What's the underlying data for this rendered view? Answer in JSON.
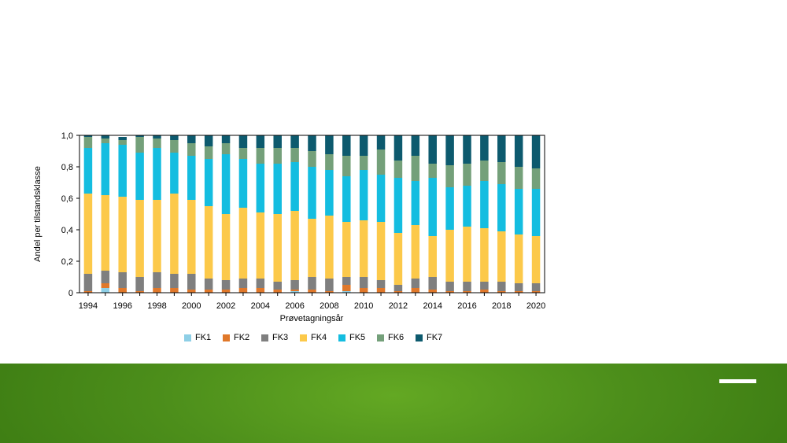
{
  "chart_data": {
    "type": "bar",
    "stacked": true,
    "xlabel": "Prøvetagningsår",
    "ylabel": "Andel per tilstandsklasse",
    "ylim": [
      0,
      1
    ],
    "yticks": [
      "0",
      "0,2",
      "0,4",
      "0,6",
      "0,8",
      "1,0"
    ],
    "yticks_values": [
      0,
      0.2,
      0.4,
      0.6,
      0.8,
      1.0
    ],
    "xticks": [
      "1994",
      "1996",
      "1998",
      "2000",
      "2002",
      "2004",
      "2006",
      "2008",
      "2010",
      "2012",
      "2014",
      "2016",
      "2018",
      "2020"
    ],
    "categories": [
      "1994",
      "1995",
      "1996",
      "1997",
      "1998",
      "1999",
      "2000",
      "2001",
      "2002",
      "2003",
      "2004",
      "2005",
      "2006",
      "2007",
      "2008",
      "2009",
      "2010",
      "2011",
      "2012",
      "2013",
      "2014",
      "2015",
      "2016",
      "2017",
      "2018",
      "2019",
      "2020"
    ],
    "legend_position": "bottom",
    "grid": false,
    "series": [
      {
        "name": "FK1",
        "color": "#8ecfe6",
        "values": [
          0,
          0.03,
          0,
          0,
          0,
          0,
          0,
          0,
          0,
          0,
          0,
          0,
          0.01,
          0,
          0,
          0.01,
          0,
          0,
          0,
          0,
          0,
          0,
          0,
          0,
          0,
          0,
          0
        ]
      },
      {
        "name": "FK2",
        "color": "#e0782a",
        "values": [
          0.01,
          0.03,
          0.03,
          0.01,
          0.03,
          0.03,
          0.02,
          0.02,
          0.02,
          0.03,
          0.03,
          0.02,
          0.01,
          0.02,
          0.01,
          0.04,
          0.03,
          0.03,
          0.01,
          0.03,
          0.02,
          0.01,
          0.01,
          0.02,
          0.01,
          0.01,
          0.01
        ]
      },
      {
        "name": "FK3",
        "color": "#7f7f7f",
        "values": [
          0.11,
          0.08,
          0.1,
          0.09,
          0.1,
          0.09,
          0.1,
          0.07,
          0.06,
          0.06,
          0.06,
          0.05,
          0.06,
          0.08,
          0.08,
          0.05,
          0.07,
          0.05,
          0.04,
          0.06,
          0.08,
          0.06,
          0.06,
          0.05,
          0.06,
          0.05,
          0.05
        ]
      },
      {
        "name": "FK4",
        "color": "#fcc94a",
        "values": [
          0.51,
          0.48,
          0.48,
          0.49,
          0.46,
          0.51,
          0.47,
          0.46,
          0.42,
          0.45,
          0.42,
          0.43,
          0.44,
          0.37,
          0.4,
          0.35,
          0.36,
          0.37,
          0.33,
          0.34,
          0.26,
          0.33,
          0.35,
          0.34,
          0.32,
          0.31,
          0.3
        ]
      },
      {
        "name": "FK5",
        "color": "#14bde0",
        "values": [
          0.29,
          0.33,
          0.33,
          0.3,
          0.33,
          0.26,
          0.28,
          0.3,
          0.38,
          0.31,
          0.31,
          0.32,
          0.31,
          0.33,
          0.29,
          0.29,
          0.32,
          0.3,
          0.35,
          0.28,
          0.37,
          0.27,
          0.26,
          0.3,
          0.3,
          0.29,
          0.3
        ]
      },
      {
        "name": "FK6",
        "color": "#74a07a",
        "values": [
          0.07,
          0.03,
          0.03,
          0.1,
          0.06,
          0.08,
          0.08,
          0.08,
          0.07,
          0.07,
          0.1,
          0.1,
          0.09,
          0.1,
          0.1,
          0.13,
          0.09,
          0.16,
          0.11,
          0.16,
          0.09,
          0.14,
          0.14,
          0.13,
          0.14,
          0.14,
          0.13
        ]
      },
      {
        "name": "FK7",
        "color": "#0d5a6e",
        "values": [
          0.01,
          0.02,
          0.02,
          0.01,
          0.02,
          0.03,
          0.05,
          0.07,
          0.05,
          0.08,
          0.08,
          0.08,
          0.08,
          0.1,
          0.12,
          0.13,
          0.13,
          0.09,
          0.16,
          0.13,
          0.18,
          0.19,
          0.18,
          0.16,
          0.17,
          0.2,
          0.21
        ]
      }
    ]
  },
  "footer": {
    "accent_color": "#4d8f1b"
  }
}
